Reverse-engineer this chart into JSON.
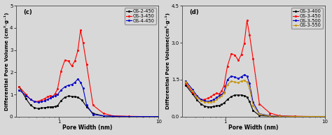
{
  "panel_c": {
    "label": "(c)",
    "ylabel": "Differential Pore Volume (cm³·g⁻¹)",
    "xlabel": "Pore Width (nm)",
    "ylim": [
      0,
      5
    ],
    "yticks": [
      0,
      1,
      2,
      3,
      4,
      5
    ],
    "series": [
      {
        "name": "GS-2-450",
        "color": "#000000",
        "x": [
          0.4,
          0.47,
          0.52,
          0.57,
          0.62,
          0.67,
          0.72,
          0.77,
          0.82,
          0.87,
          0.92,
          0.97,
          1.05,
          1.15,
          1.25,
          1.35,
          1.45,
          1.55,
          1.7,
          1.9,
          2.2,
          2.8,
          3.5,
          5.0,
          7.0,
          10.0
        ],
        "y": [
          1.35,
          0.8,
          0.52,
          0.4,
          0.37,
          0.39,
          0.41,
          0.43,
          0.44,
          0.45,
          0.46,
          0.5,
          0.72,
          0.88,
          0.93,
          0.92,
          0.9,
          0.88,
          0.75,
          0.45,
          0.15,
          0.04,
          0.02,
          0.01,
          0.01,
          0.01
        ]
      },
      {
        "name": "GS-3-450",
        "color": "#ff0000",
        "x": [
          0.4,
          0.47,
          0.52,
          0.57,
          0.62,
          0.67,
          0.72,
          0.77,
          0.82,
          0.87,
          0.92,
          0.97,
          1.05,
          1.15,
          1.25,
          1.35,
          1.45,
          1.55,
          1.65,
          1.75,
          1.9,
          2.2,
          2.8,
          3.5,
          5.0,
          7.0,
          10.0
        ],
        "y": [
          1.35,
          1.0,
          0.78,
          0.68,
          0.7,
          0.75,
          0.82,
          0.9,
          0.95,
          0.92,
          1.05,
          1.25,
          2.05,
          2.55,
          2.5,
          2.28,
          2.52,
          2.98,
          3.9,
          3.32,
          2.35,
          0.52,
          0.15,
          0.04,
          0.02,
          0.01,
          0.01
        ]
      },
      {
        "name": "GS-4-450",
        "color": "#0000cc",
        "x": [
          0.4,
          0.47,
          0.52,
          0.57,
          0.62,
          0.67,
          0.72,
          0.77,
          0.82,
          0.87,
          0.92,
          0.97,
          1.05,
          1.15,
          1.25,
          1.35,
          1.45,
          1.55,
          1.65,
          1.75,
          1.9,
          2.2,
          2.8,
          3.5,
          5.0,
          7.0,
          10.0
        ],
        "y": [
          1.2,
          0.95,
          0.78,
          0.68,
          0.65,
          0.68,
          0.72,
          0.78,
          0.85,
          0.9,
          0.95,
          1.0,
          1.2,
          1.35,
          1.42,
          1.45,
          1.55,
          1.7,
          1.55,
          1.28,
          0.52,
          0.1,
          0.04,
          0.02,
          0.01,
          0.01,
          0.01
        ]
      }
    ]
  },
  "panel_d": {
    "label": "(d)",
    "ylabel": "Differential Pore Volume(cm³·g⁻¹)",
    "xlabel": "Pore Width (nm)",
    "ylim": [
      0,
      4.5
    ],
    "yticks": [
      0.0,
      1.5,
      3.0,
      4.5
    ],
    "series": [
      {
        "name": "GS-3-400",
        "color": "#000000",
        "x": [
          0.4,
          0.47,
          0.52,
          0.57,
          0.62,
          0.67,
          0.72,
          0.77,
          0.82,
          0.87,
          0.92,
          0.97,
          1.05,
          1.15,
          1.25,
          1.35,
          1.45,
          1.55,
          1.65,
          1.75,
          1.9,
          2.2,
          2.8,
          3.5,
          5.0,
          7.0,
          10.0
        ],
        "y": [
          1.28,
          0.92,
          0.68,
          0.52,
          0.43,
          0.4,
          0.4,
          0.42,
          0.44,
          0.46,
          0.5,
          0.55,
          0.7,
          0.82,
          0.88,
          0.88,
          0.88,
          0.85,
          0.8,
          0.62,
          0.25,
          0.05,
          0.02,
          0.01,
          0.01,
          0.01,
          0.01
        ]
      },
      {
        "name": "GS-3-450",
        "color": "#ff0000",
        "x": [
          0.4,
          0.47,
          0.52,
          0.57,
          0.62,
          0.67,
          0.72,
          0.77,
          0.82,
          0.87,
          0.92,
          0.97,
          1.05,
          1.15,
          1.25,
          1.35,
          1.45,
          1.55,
          1.65,
          1.75,
          1.9,
          2.2,
          2.8,
          3.5,
          5.0,
          7.0,
          10.0
        ],
        "y": [
          1.35,
          1.0,
          0.78,
          0.68,
          0.7,
          0.75,
          0.82,
          0.9,
          0.95,
          0.92,
          1.05,
          1.25,
          2.05,
          2.55,
          2.5,
          2.28,
          2.52,
          2.98,
          3.9,
          3.32,
          2.35,
          0.52,
          0.15,
          0.04,
          0.02,
          0.01,
          0.01
        ]
      },
      {
        "name": "GS-3-500",
        "color": "#0000cc",
        "x": [
          0.4,
          0.47,
          0.52,
          0.57,
          0.62,
          0.67,
          0.72,
          0.77,
          0.82,
          0.87,
          0.92,
          0.97,
          1.05,
          1.15,
          1.25,
          1.35,
          1.45,
          1.55,
          1.65,
          1.75,
          1.9,
          2.2,
          2.8,
          3.5,
          5.0,
          7.0,
          10.0
        ],
        "y": [
          1.45,
          1.1,
          0.85,
          0.7,
          0.65,
          0.62,
          0.65,
          0.7,
          0.78,
          0.85,
          0.9,
          1.0,
          1.5,
          1.65,
          1.6,
          1.55,
          1.62,
          1.7,
          1.65,
          1.35,
          0.58,
          0.12,
          0.04,
          0.02,
          0.01,
          0.01,
          0.01
        ]
      },
      {
        "name": "GS-3-550",
        "color": "#c8960c",
        "x": [
          0.4,
          0.47,
          0.52,
          0.57,
          0.62,
          0.67,
          0.72,
          0.77,
          0.82,
          0.87,
          0.92,
          0.97,
          1.05,
          1.15,
          1.25,
          1.35,
          1.45,
          1.55,
          1.65,
          1.75,
          1.9,
          2.2,
          2.8,
          3.5,
          5.0,
          7.0,
          10.0
        ],
        "y": [
          1.4,
          1.05,
          0.8,
          0.65,
          0.6,
          0.58,
          0.6,
          0.62,
          0.7,
          0.78,
          0.85,
          0.95,
          1.3,
          1.45,
          1.4,
          1.38,
          1.45,
          1.48,
          1.4,
          1.15,
          0.45,
          0.1,
          0.03,
          0.02,
          0.01,
          0.01,
          0.01
        ]
      }
    ]
  },
  "bg_color": "#d8d8d8",
  "plot_bg": "#d8d8d8",
  "marker": "o",
  "markersize": 2.2,
  "linewidth": 0.8,
  "legend_fontsize": 4.8,
  "axis_fontsize": 5.5,
  "tick_fontsize": 5.0,
  "label_fontsize": 6.0
}
